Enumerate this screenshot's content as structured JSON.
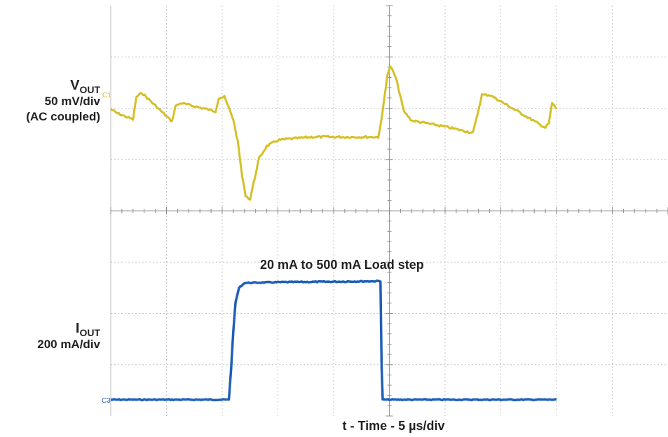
{
  "chart_data": {
    "type": "line",
    "title": "",
    "xlabel": "t - Time - 5 µs/div",
    "x_unit": "µs",
    "x_per_div": 5,
    "divisions": {
      "x": 10,
      "y": 8
    },
    "xlim": [
      0,
      50
    ],
    "grid": true,
    "annotations": [
      {
        "text": "20 mA to 500 mA Load step"
      }
    ],
    "series": [
      {
        "name": "VOUT",
        "label_main": "V",
        "label_sub": "OUT",
        "scale_text": "50 mV/div",
        "coupling_text": "(AC coupled)",
        "marker": "C1",
        "color": "#d4c028",
        "unit": "mV (AC)",
        "points": [
          [
            0,
            0
          ],
          [
            0.6,
            -4
          ],
          [
            2.0,
            -10
          ],
          [
            2.3,
            12
          ],
          [
            2.8,
            16
          ],
          [
            5.5,
            -12
          ],
          [
            5.8,
            3
          ],
          [
            6.3,
            6
          ],
          [
            9.4,
            -2
          ],
          [
            9.7,
            11
          ],
          [
            10.2,
            12
          ],
          [
            11.0,
            -10
          ],
          [
            11.4,
            -32
          ],
          [
            11.8,
            -66
          ],
          [
            12.1,
            -84
          ],
          [
            12.5,
            -88
          ],
          [
            12.8,
            -73
          ],
          [
            13.3,
            -48
          ],
          [
            14.0,
            -36
          ],
          [
            15.0,
            -30
          ],
          [
            18.0,
            -27
          ],
          [
            22.0,
            -27
          ],
          [
            24.0,
            -27
          ],
          [
            24.3,
            -10
          ],
          [
            24.8,
            32
          ],
          [
            25.1,
            42
          ],
          [
            25.6,
            30
          ],
          [
            26.3,
            -2
          ],
          [
            27.0,
            -11
          ],
          [
            30.0,
            -17
          ],
          [
            32.5,
            -23
          ],
          [
            32.8,
            -10
          ],
          [
            33.3,
            14
          ],
          [
            34.0,
            14
          ],
          [
            39.0,
            -18
          ],
          [
            39.3,
            -14
          ],
          [
            39.6,
            6
          ],
          [
            40.0,
            0
          ]
        ]
      },
      {
        "name": "IOUT",
        "label_main": "I",
        "label_sub": "OUT",
        "scale_text": "200 mA/div",
        "marker": "C3",
        "color": "#1f5fb8",
        "unit": "mA",
        "points": [
          [
            0,
            20
          ],
          [
            10.6,
            20
          ],
          [
            10.8,
            140
          ],
          [
            11.0,
            290
          ],
          [
            11.2,
            400
          ],
          [
            11.5,
            455
          ],
          [
            12.0,
            475
          ],
          [
            15.0,
            478
          ],
          [
            20.0,
            480
          ],
          [
            24.0,
            482
          ],
          [
            24.2,
            482
          ],
          [
            24.3,
            150
          ],
          [
            24.4,
            20
          ],
          [
            40.0,
            20
          ]
        ]
      }
    ]
  }
}
